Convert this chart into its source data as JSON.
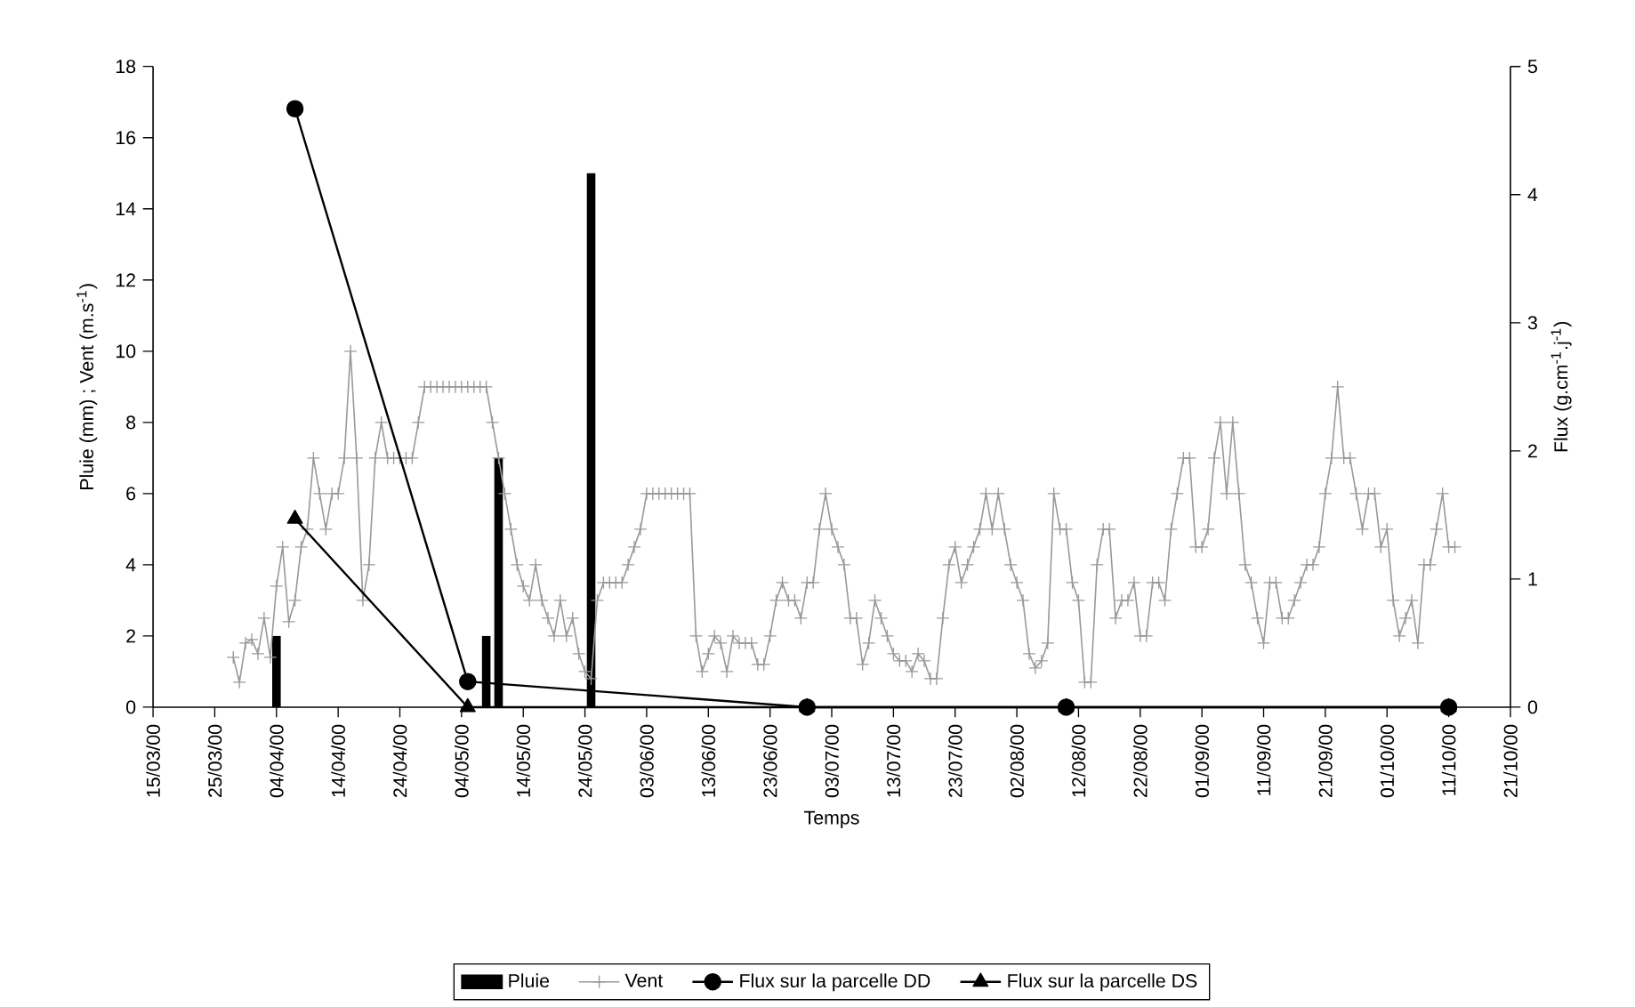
{
  "chart_data": {
    "type": "line",
    "xlabel": "Temps",
    "ylabel": "Pluie (mm) ; Vent (m.s$^{-1}$)",
    "y2label": "Flux (g.cm$^{-1}$.j$^{-1}$)",
    "xlim": [
      "2000-03-15",
      "2000-10-21"
    ],
    "xticks": [
      {
        "value": "2000-03-15",
        "label": "15/03/00"
      },
      {
        "value": "2000-03-25",
        "label": "25/03/00"
      },
      {
        "value": "2000-04-04",
        "label": "04/04/00"
      },
      {
        "value": "2000-04-14",
        "label": "14/04/00"
      },
      {
        "value": "2000-04-24",
        "label": "24/04/00"
      },
      {
        "value": "2000-05-04",
        "label": "04/05/00"
      },
      {
        "value": "2000-05-14",
        "label": "14/05/00"
      },
      {
        "value": "2000-05-24",
        "label": "24/05/00"
      },
      {
        "value": "2000-06-03",
        "label": "03/06/00"
      },
      {
        "value": "2000-06-13",
        "label": "13/06/00"
      },
      {
        "value": "2000-06-23",
        "label": "23/06/00"
      },
      {
        "value": "2000-07-03",
        "label": "03/07/00"
      },
      {
        "value": "2000-07-13",
        "label": "13/07/00"
      },
      {
        "value": "2000-07-23",
        "label": "23/07/00"
      },
      {
        "value": "2000-08-02",
        "label": "02/08/00"
      },
      {
        "value": "2000-08-12",
        "label": "12/08/00"
      },
      {
        "value": "2000-08-22",
        "label": "22/08/00"
      },
      {
        "value": "2000-09-01",
        "label": "01/09/00"
      },
      {
        "value": "2000-09-11",
        "label": "11/09/00"
      },
      {
        "value": "2000-09-21",
        "label": "21/09/00"
      },
      {
        "value": "2000-10-01",
        "label": "01/10/00"
      },
      {
        "value": "2000-10-11",
        "label": "11/10/00"
      },
      {
        "value": "2000-10-21",
        "label": "21/10/00"
      }
    ],
    "ylim": [
      0,
      18
    ],
    "yticks": [
      0,
      2,
      4,
      6,
      8,
      10,
      12,
      14,
      16,
      18
    ],
    "y2lim": [
      0,
      5
    ],
    "y2ticks": [
      0,
      1,
      2,
      3,
      4,
      5
    ],
    "legend": "bottom",
    "series": [
      {
        "name": "Pluie",
        "type": "bar",
        "color": "#000000",
        "x": [
          "2000-04-04",
          "2000-05-08",
          "2000-05-10",
          "2000-05-25"
        ],
        "values": [
          2,
          2,
          7,
          15
        ]
      },
      {
        "name": "Vent",
        "color": "#999999",
        "marker": "cross",
        "x": [
          "2000-03-28",
          "2000-03-29",
          "2000-03-30",
          "2000-03-31",
          "2000-04-01",
          "2000-04-02",
          "2000-04-03",
          "2000-04-04",
          "2000-04-05",
          "2000-04-06",
          "2000-04-07",
          "2000-04-08",
          "2000-04-09",
          "2000-04-10",
          "2000-04-11",
          "2000-04-12",
          "2000-04-13",
          "2000-04-14",
          "2000-04-15",
          "2000-04-16",
          "2000-04-17",
          "2000-04-18",
          "2000-04-19",
          "2000-04-20",
          "2000-04-21",
          "2000-04-22",
          "2000-04-23",
          "2000-04-24",
          "2000-04-25",
          "2000-04-26",
          "2000-04-27",
          "2000-04-28",
          "2000-04-29",
          "2000-04-30",
          "2000-05-01",
          "2000-05-02",
          "2000-05-03",
          "2000-05-04",
          "2000-05-05",
          "2000-05-06",
          "2000-05-07",
          "2000-05-08",
          "2000-05-09",
          "2000-05-10",
          "2000-05-11",
          "2000-05-12",
          "2000-05-13",
          "2000-05-14",
          "2000-05-15",
          "2000-05-16",
          "2000-05-17",
          "2000-05-18",
          "2000-05-19",
          "2000-05-20",
          "2000-05-21",
          "2000-05-22",
          "2000-05-23",
          "2000-05-24",
          "2000-05-25",
          "2000-05-26",
          "2000-05-27",
          "2000-05-28",
          "2000-05-29",
          "2000-05-30",
          "2000-05-31",
          "2000-06-01",
          "2000-06-02",
          "2000-06-03",
          "2000-06-04",
          "2000-06-05",
          "2000-06-06",
          "2000-06-07",
          "2000-06-08",
          "2000-06-09",
          "2000-06-10",
          "2000-06-11",
          "2000-06-12",
          "2000-06-13",
          "2000-06-14",
          "2000-06-15",
          "2000-06-16",
          "2000-06-17",
          "2000-06-18",
          "2000-06-19",
          "2000-06-20",
          "2000-06-21",
          "2000-06-22",
          "2000-06-23",
          "2000-06-24",
          "2000-06-25",
          "2000-06-26",
          "2000-06-27",
          "2000-06-28",
          "2000-06-29",
          "2000-06-30",
          "2000-07-01",
          "2000-07-02",
          "2000-07-03",
          "2000-07-04",
          "2000-07-05",
          "2000-07-06",
          "2000-07-07",
          "2000-07-08",
          "2000-07-09",
          "2000-07-10",
          "2000-07-11",
          "2000-07-12",
          "2000-07-13",
          "2000-07-14",
          "2000-07-15",
          "2000-07-16",
          "2000-07-17",
          "2000-07-18",
          "2000-07-19",
          "2000-07-20",
          "2000-07-21",
          "2000-07-22",
          "2000-07-23",
          "2000-07-24",
          "2000-07-25",
          "2000-07-26",
          "2000-07-27",
          "2000-07-28",
          "2000-07-29",
          "2000-07-30",
          "2000-07-31",
          "2000-08-01",
          "2000-08-02",
          "2000-08-03",
          "2000-08-04",
          "2000-08-05",
          "2000-08-06",
          "2000-08-07",
          "2000-08-08",
          "2000-08-09",
          "2000-08-10",
          "2000-08-11",
          "2000-08-12",
          "2000-08-13",
          "2000-08-14",
          "2000-08-15",
          "2000-08-16",
          "2000-08-17",
          "2000-08-18",
          "2000-08-19",
          "2000-08-20",
          "2000-08-21",
          "2000-08-22",
          "2000-08-23",
          "2000-08-24",
          "2000-08-25",
          "2000-08-26",
          "2000-08-27",
          "2000-08-28",
          "2000-08-29",
          "2000-08-30",
          "2000-08-31",
          "2000-09-01",
          "2000-09-02",
          "2000-09-03",
          "2000-09-04",
          "2000-09-05",
          "2000-09-06",
          "2000-09-07",
          "2000-09-08",
          "2000-09-09",
          "2000-09-10",
          "2000-09-11",
          "2000-09-12",
          "2000-09-13",
          "2000-09-14",
          "2000-09-15",
          "2000-09-16",
          "2000-09-17",
          "2000-09-18",
          "2000-09-19",
          "2000-09-20",
          "2000-09-21",
          "2000-09-22",
          "2000-09-23",
          "2000-09-24",
          "2000-09-25",
          "2000-09-26",
          "2000-09-27",
          "2000-09-28",
          "2000-09-29",
          "2000-09-30",
          "2000-10-01",
          "2000-10-02",
          "2000-10-03",
          "2000-10-04",
          "2000-10-05",
          "2000-10-06",
          "2000-10-07",
          "2000-10-08",
          "2000-10-09",
          "2000-10-10",
          "2000-10-11",
          "2000-10-12"
        ],
        "values": [
          1.4,
          0.7,
          1.8,
          1.9,
          1.5,
          2.5,
          1.4,
          3.4,
          4.5,
          2.4,
          3,
          4.5,
          5,
          7,
          6,
          5,
          6,
          6,
          7,
          10,
          7,
          3,
          4,
          7,
          8,
          7,
          7,
          7,
          7,
          7,
          8,
          9,
          9,
          9,
          9,
          9,
          9,
          9,
          9,
          9,
          9,
          9,
          8,
          7,
          6,
          5,
          4,
          3.4,
          3,
          4,
          3,
          2.5,
          2,
          3,
          2,
          2.5,
          1.5,
          1,
          0.8,
          3,
          3.5,
          3.5,
          3.5,
          3.5,
          4,
          4.5,
          5,
          6,
          6,
          6,
          6,
          6,
          6,
          6,
          6,
          2,
          1,
          1.5,
          2,
          1.8,
          1,
          2,
          1.8,
          1.8,
          1.8,
          1.2,
          1.2,
          2,
          3,
          3.5,
          3,
          3,
          2.5,
          3.5,
          3.5,
          5,
          6,
          5,
          4.5,
          4,
          2.5,
          2.5,
          1.2,
          1.8,
          3,
          2.5,
          2,
          1.5,
          1.3,
          1.3,
          1,
          1.5,
          1.3,
          0.8,
          0.8,
          2.5,
          4,
          4.5,
          3.5,
          4,
          4.5,
          5,
          6,
          5,
          6,
          5,
          4,
          3.5,
          3,
          1.5,
          1.1,
          1.3,
          1.8,
          6,
          5,
          5,
          3.5,
          3,
          0.7,
          0.7,
          4,
          5,
          5,
          2.5,
          3,
          3,
          3.5,
          2,
          2,
          3.5,
          3.5,
          3,
          5,
          6,
          7,
          7,
          4.5,
          4.5,
          5,
          7,
          8,
          6,
          8,
          6,
          4,
          3.5,
          2.5,
          1.8,
          3.5,
          3.5,
          2.5,
          2.5,
          3,
          3.5,
          4,
          4,
          4.5,
          6,
          7,
          9,
          7,
          7,
          6,
          5,
          6,
          6,
          4.5,
          5,
          3,
          2,
          2.5,
          3,
          1.8,
          4,
          4,
          5,
          6,
          4.5,
          4.5
        ]
      },
      {
        "name": "Flux sur la parcelle DD",
        "axis": "y2",
        "color": "#000000",
        "marker": "circle",
        "x": [
          "2000-04-07",
          "2000-05-05",
          "2000-06-29",
          "2000-08-10",
          "2000-10-11"
        ],
        "values": [
          4.67,
          0.2,
          0,
          0,
          0
        ]
      },
      {
        "name": "Flux sur la parcelle DS",
        "axis": "y2",
        "color": "#000000",
        "marker": "triangle",
        "x": [
          "2000-04-07",
          "2000-05-05",
          "2000-06-29",
          "2000-08-10",
          "2000-10-11"
        ],
        "values": [
          1.47,
          0,
          0,
          0,
          0
        ]
      }
    ]
  }
}
